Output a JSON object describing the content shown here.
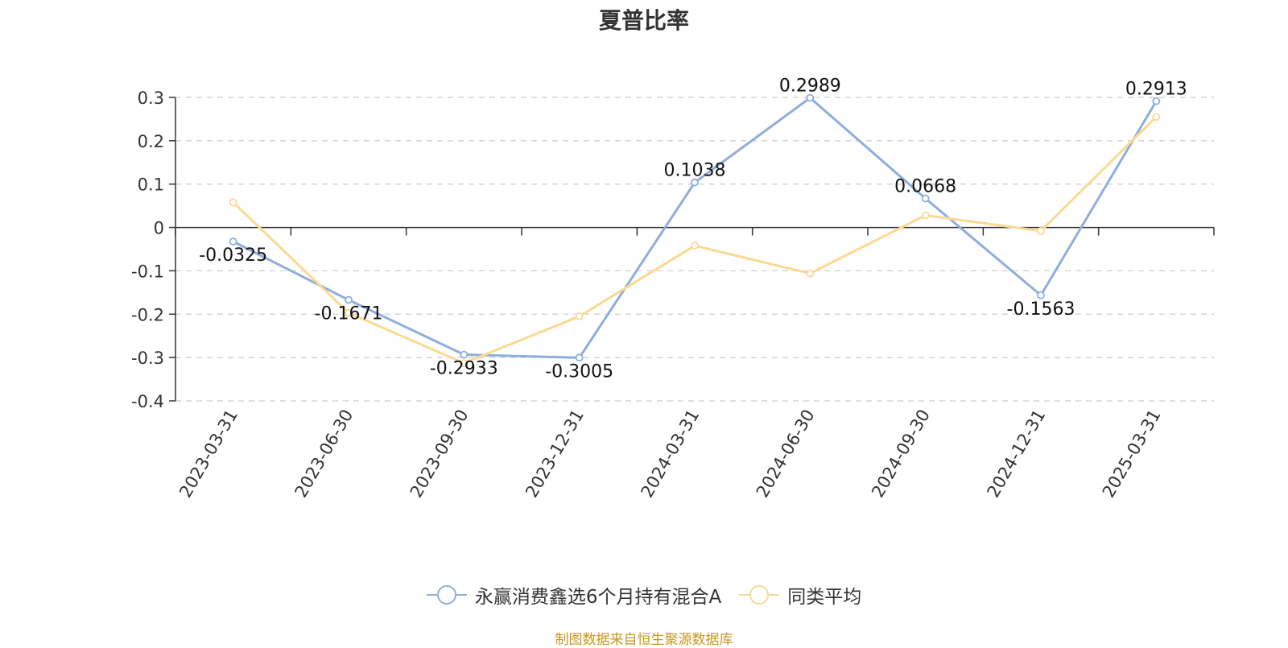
{
  "title": "夏普比率",
  "source_note": "制图数据来自恒生聚源数据库",
  "colors": {
    "fund": "#8eaedb",
    "average": "#fbd993",
    "axis": "#333333",
    "grid": "#cccccc"
  },
  "chart_data": {
    "type": "line",
    "x": [
      "2023-03-31",
      "2023-06-30",
      "2023-09-30",
      "2023-12-31",
      "2024-03-31",
      "2024-06-30",
      "2024-09-30",
      "2024-12-31",
      "2025-03-31"
    ],
    "yticks": [
      "0.3",
      "0.2",
      "0.1",
      "0",
      "-0.1",
      "-0.2",
      "-0.3",
      "-0.4"
    ],
    "ylim": [
      -0.4,
      0.3
    ],
    "grid": true,
    "legend_position": "bottom",
    "series": [
      {
        "name": "永赢消费鑫选6个月持有混合A",
        "values": [
          -0.0325,
          -0.1671,
          -0.2933,
          -0.3005,
          0.1038,
          0.2989,
          0.0668,
          -0.1563,
          0.2913
        ],
        "labels": [
          "-0.0325",
          "-0.1671",
          "-0.2933",
          "-0.3005",
          "0.1038",
          "0.2989",
          "0.0668",
          "-0.1563",
          "0.2913"
        ]
      },
      {
        "name": "同类平均",
        "values": [
          0.058,
          -0.197,
          -0.313,
          -0.205,
          -0.042,
          -0.106,
          0.028,
          -0.008,
          0.255
        ]
      }
    ]
  }
}
